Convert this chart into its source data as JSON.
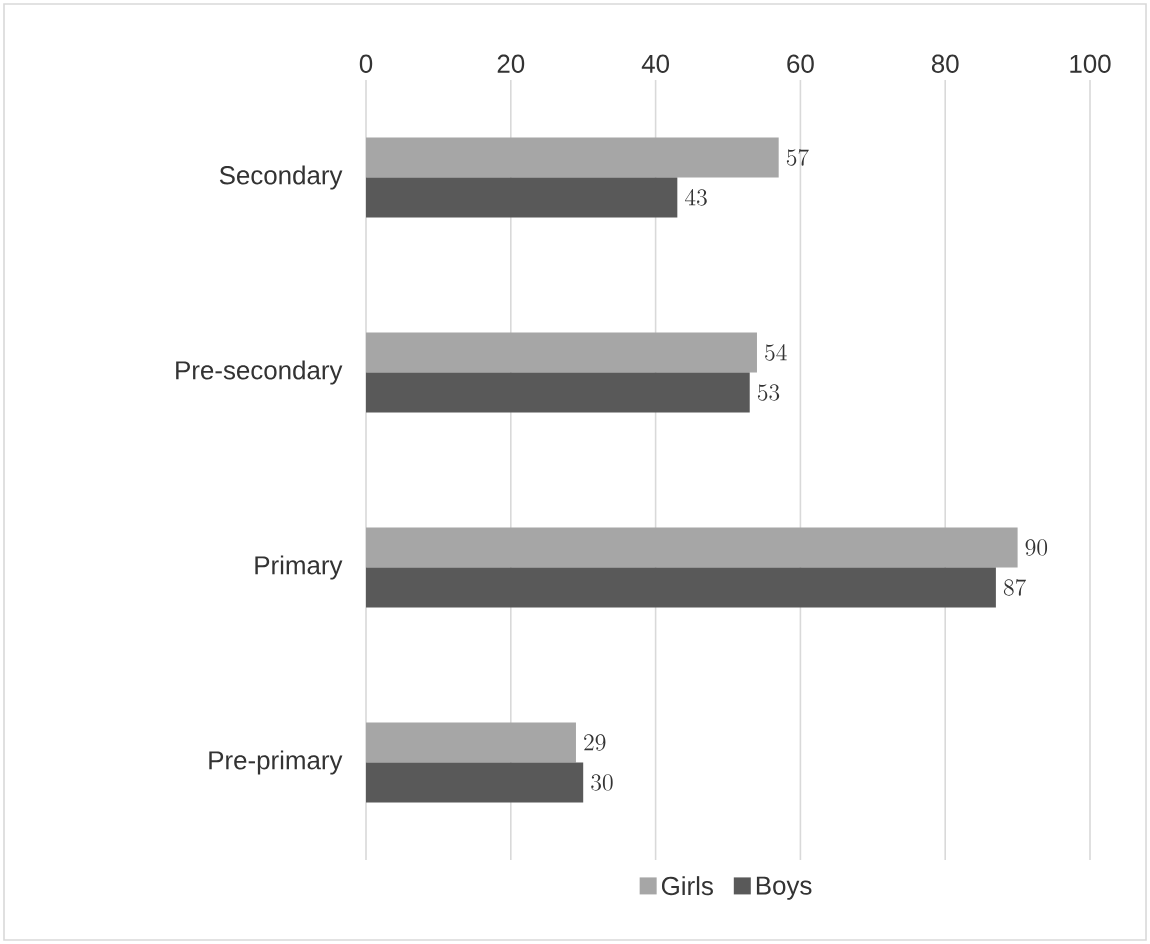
{
  "chart_data": {
    "type": "bar",
    "orientation": "horizontal",
    "categories": [
      "Secondary",
      "Pre-secondary",
      "Primary",
      "Pre-primary"
    ],
    "series": [
      {
        "name": "Girls",
        "color": "#a6a6a6",
        "values": [
          57,
          54,
          90,
          29
        ]
      },
      {
        "name": "Boys",
        "color": "#595959",
        "values": [
          43,
          53,
          87,
          30
        ]
      }
    ],
    "xlim": [
      0,
      100
    ],
    "xticks": [
      0,
      20,
      40,
      60,
      80,
      100
    ],
    "grid": "x",
    "legend": "bottom",
    "data_labels": true
  }
}
